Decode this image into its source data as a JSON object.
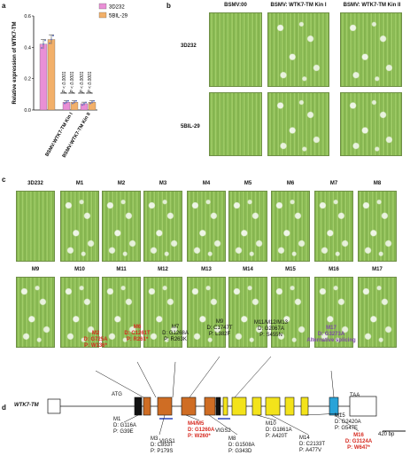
{
  "panel_a": {
    "letter": "a",
    "ylabel": "Relative expression of WTK7-TM",
    "legend": [
      "3D232",
      "5BIL-29"
    ],
    "colors": {
      "c3D232": "#e98fd6",
      "c5BIL": "#f2b06a",
      "err": "#555555",
      "dot": "#5a6fc4"
    },
    "sig": [
      "****",
      "****",
      "****",
      "****"
    ],
    "pvals": [
      "P < 0.0001",
      "P < 0.0001",
      "P < 0.0001",
      "P < 0.0001"
    ],
    "chart_data": {
      "type": "bar",
      "categories": [
        "",
        "BSMV:WTK7-TM Kin I",
        "BSMV:WTK7-TM Kin II"
      ],
      "series": [
        {
          "name": "3D232",
          "values": [
            0.42,
            0.05,
            0.04
          ]
        },
        {
          "name": "5BIL-29",
          "values": [
            0.45,
            0.05,
            0.05
          ]
        }
      ],
      "ylim": [
        0,
        0.6
      ],
      "yticks": [
        "0.0",
        "0.2",
        "0.4",
        "0.6"
      ],
      "ylabel": "Relative expression of WTK7-TM"
    }
  },
  "panel_b": {
    "letter": "b",
    "cols": [
      "BSMV:00",
      "BSMV: WTK7-TM Kin I",
      "BSMV: WTK7-TM Kin II"
    ],
    "rows": [
      "3D232",
      "5BIL-29"
    ]
  },
  "panel_c": {
    "letter": "c",
    "row1": [
      "3D232",
      "M1",
      "M2",
      "M3",
      "M4",
      "M5",
      "M6",
      "M7",
      "M8"
    ],
    "row2": [
      "M9",
      "M10",
      "M11",
      "M12",
      "M13",
      "M14",
      "M15",
      "M16",
      "M17"
    ]
  },
  "panel_d": {
    "letter": "d",
    "gene": "WTK7-TM",
    "atg": "ATG",
    "taa": "TAA",
    "scale": "420 bp",
    "vigs1": "VIGS1",
    "vigs2": "VIGS2",
    "top_mutations": [
      {
        "id": "M2",
        "d": "D: G725A",
        "p": "P: W136*",
        "color": "red"
      },
      {
        "id": "M6",
        "d": "D: C1261T",
        "p": "P: R261*",
        "color": "red"
      },
      {
        "id": "M7",
        "d": "D: G1268A",
        "p": "P: R263K",
        "color": "black"
      },
      {
        "id": "M9",
        "d": "D: C1747T",
        "p": "P: L382F",
        "color": "black"
      },
      {
        "id": "M11/M12/M13",
        "d": "D: G2067A",
        "p": "P: S455N",
        "color": "black"
      },
      {
        "id": "M17",
        "d": "D: G3273A",
        "p": "Alternative splicing",
        "color": "purple"
      },
      {
        "id": "M16",
        "d": "D: G3124A",
        "p": "P: W647*",
        "color": "red"
      }
    ],
    "bottom_mutations": [
      {
        "id": "M1",
        "d": "D: G116A",
        "p": "P: G39E",
        "color": "black"
      },
      {
        "id": "M3",
        "d": "D: C853T",
        "p": "P: P179S",
        "color": "black"
      },
      {
        "id": "M4/M5",
        "d": "D: G1260A",
        "p": "P: W260*",
        "color": "red"
      },
      {
        "id": "M8",
        "d": "D: G1508A",
        "p": "P: G343D",
        "color": "black"
      },
      {
        "id": "M10",
        "d": "D: G1861A",
        "p": "P: A420T",
        "color": "black"
      },
      {
        "id": "M14",
        "d": "D: C2133T",
        "p": "P: A477V",
        "color": "black"
      },
      {
        "id": "M15",
        "d": "D: G2420A",
        "p": "P: G547E",
        "color": "black"
      }
    ]
  }
}
